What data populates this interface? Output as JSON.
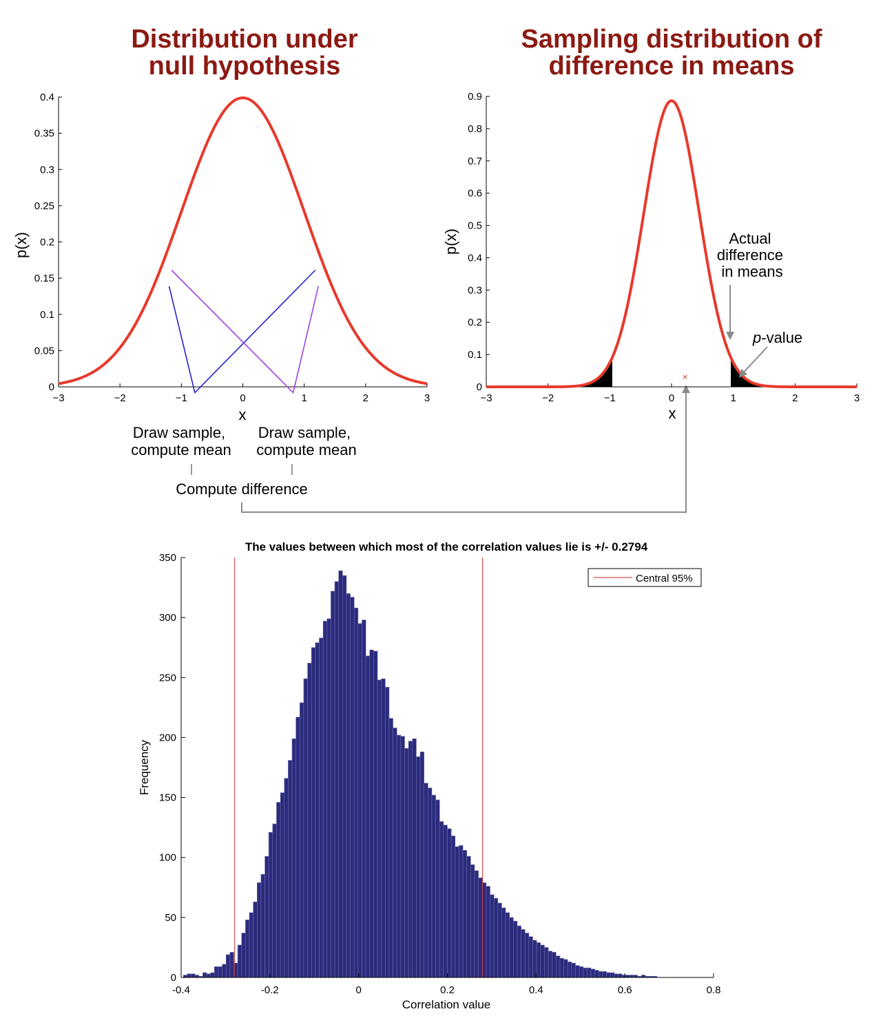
{
  "chart_data": [
    {
      "type": "line",
      "title_lines": [
        "Distribution under",
        "null hypothesis"
      ],
      "xlabel": "x",
      "ylabel": "p(x)",
      "xlim": [
        -3,
        3
      ],
      "ylim": [
        0,
        0.4
      ],
      "x_ticks": [
        -3,
        -2,
        -1,
        0,
        1,
        2,
        3
      ],
      "x_tick_labels": [
        "−3",
        "−2",
        "−1",
        "0",
        "1",
        "2",
        "3"
      ],
      "y_ticks": [
        0,
        0.05,
        0.1,
        0.15,
        0.2,
        0.25,
        0.3,
        0.35,
        0.4
      ],
      "y_tick_labels": [
        "0",
        "0.05",
        "0.1",
        "0.15",
        "0.2",
        "0.25",
        "0.3",
        "0.35",
        "0.4"
      ],
      "curve": {
        "name": "Normal pdf",
        "mean": 0,
        "sd": 1,
        "color": "#e8392b"
      },
      "sample_lines": [
        {
          "color": "#2222cc",
          "points": [
            [
              -1.2,
              0.139
            ],
            [
              -0.78,
              -0.008
            ],
            [
              1.18,
              0.161
            ]
          ]
        },
        {
          "color": "#a040e0",
          "points": [
            [
              -1.16,
              0.161
            ],
            [
              0.82,
              -0.008
            ],
            [
              1.23,
              0.139
            ]
          ]
        }
      ],
      "annotations": {
        "left_note": [
          "Draw sample,",
          "compute mean"
        ],
        "right_note": [
          "Draw sample,",
          "compute mean"
        ],
        "bottom_note": "Compute difference"
      }
    },
    {
      "type": "line",
      "title_lines": [
        "Sampling distribution of",
        "difference in means"
      ],
      "xlabel": "x",
      "ylabel": "p(x)",
      "xlim": [
        -3,
        3
      ],
      "ylim": [
        0,
        0.9
      ],
      "x_ticks": [
        -3,
        -2,
        -1,
        0,
        1,
        2,
        3
      ],
      "x_tick_labels": [
        "−3",
        "−2",
        "−1",
        "0",
        "1",
        "2",
        "3"
      ],
      "y_ticks": [
        0,
        0.1,
        0.2,
        0.3,
        0.4,
        0.5,
        0.6,
        0.7,
        0.8,
        0.9
      ],
      "y_tick_labels": [
        "0",
        "0.1",
        "0.2",
        "0.3",
        "0.4",
        "0.5",
        "0.6",
        "0.7",
        "0.8",
        "0.9"
      ],
      "curve": {
        "name": "Normal pdf",
        "mean": 0,
        "sd": 0.45,
        "color": "#e8392b"
      },
      "shaded_tails": {
        "left_below": -0.96,
        "right_above": 0.96,
        "color": "#000000"
      },
      "marker": {
        "x": 0.22,
        "y": 0.03,
        "symbol": "×",
        "color": "#e8392b"
      },
      "annotations": {
        "actual_diff": [
          "Actual",
          "difference",
          "in means"
        ],
        "actual_diff_x": 0.96,
        "pvalue_italic": "p",
        "pvalue_rest": "-value"
      }
    },
    {
      "type": "bar",
      "title": "The values between which most of the correlation values lie is +/- 0.2794",
      "xlabel": "Correlation value",
      "ylabel": "Frequency",
      "xlim": [
        -0.4,
        0.8
      ],
      "ylim": [
        0,
        350
      ],
      "x_ticks": [
        -0.4,
        -0.2,
        0,
        0.2,
        0.4,
        0.6,
        0.8
      ],
      "x_tick_labels": [
        "-0.4",
        "-0.2",
        "0",
        "0.2",
        "0.4",
        "0.6",
        "0.8"
      ],
      "y_ticks": [
        0,
        50,
        100,
        150,
        200,
        250,
        300,
        350
      ],
      "y_tick_labels": [
        "0",
        "50",
        "100",
        "150",
        "200",
        "250",
        "300",
        "350"
      ],
      "bin_start": -0.395,
      "bin_width": 0.00875,
      "counts": [
        2,
        3,
        3,
        2,
        1,
        4,
        3,
        4,
        9,
        9,
        11,
        19,
        21,
        12,
        27,
        37,
        48,
        54,
        63,
        79,
        86,
        101,
        121,
        128,
        146,
        154,
        166,
        181,
        199,
        217,
        229,
        249,
        262,
        275,
        279,
        283,
        297,
        299,
        322,
        330,
        339,
        335,
        320,
        317,
        308,
        295,
        298,
        268,
        273,
        272,
        248,
        249,
        242,
        216,
        208,
        202,
        201,
        191,
        197,
        199,
        184,
        188,
        162,
        158,
        152,
        148,
        130,
        127,
        124,
        118,
        109,
        110,
        106,
        101,
        94,
        89,
        83,
        79,
        76,
        69,
        66,
        62,
        58,
        54,
        50,
        47,
        43,
        40,
        37,
        34,
        31,
        29,
        27,
        25,
        22,
        21,
        18,
        16,
        15,
        13,
        12,
        10,
        9,
        8,
        8,
        7,
        6,
        5,
        5,
        4,
        4,
        3,
        3,
        2,
        2,
        2,
        2,
        1,
        2,
        1,
        1,
        1
      ],
      "bar_color": "#2b2b7e",
      "bar_edge": "#6c6ca8",
      "vlines": [
        -0.2794,
        0.2794
      ],
      "vline_color": "#cc2a2a",
      "legend": {
        "label": "Central 95%",
        "position": "top-right"
      }
    }
  ]
}
